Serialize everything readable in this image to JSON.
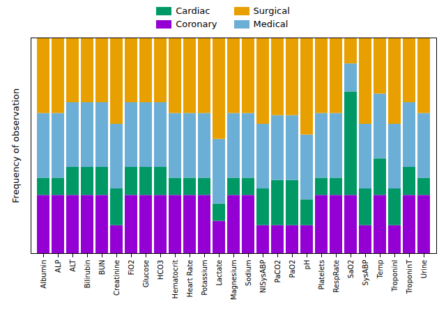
{
  "chart_data": {
    "type": "bar",
    "stacked": true,
    "categories": [
      "Albumin",
      "ALP",
      "ALT",
      "Bilirubin",
      "BUN",
      "Creatinine",
      "FiO2",
      "Glucose",
      "HCO3",
      "Hematocrit",
      "Heart Rate",
      "Potassium",
      "Lactate",
      "Magnesium",
      "Sodium",
      "NISysABP",
      "PaCO2",
      "PaO2",
      "pH",
      "Platelets",
      "RespRate",
      "SaO2",
      "SysABP",
      "Temp",
      "TroponinI",
      "TroponinT",
      "Urine"
    ],
    "series": [
      {
        "name": "Coronary",
        "color": "#9400D3",
        "values": [
          0.27,
          0.27,
          0.27,
          0.27,
          0.27,
          0.13,
          0.27,
          0.27,
          0.27,
          0.27,
          0.27,
          0.27,
          0.15,
          0.27,
          0.27,
          0.13,
          0.13,
          0.13,
          0.13,
          0.27,
          0.27,
          0.27,
          0.13,
          0.27,
          0.13,
          0.27,
          0.27
        ]
      },
      {
        "name": "Cardiac",
        "color": "#009966",
        "values": [
          0.08,
          0.08,
          0.13,
          0.13,
          0.13,
          0.17,
          0.13,
          0.13,
          0.13,
          0.08,
          0.08,
          0.08,
          0.08,
          0.08,
          0.08,
          0.17,
          0.21,
          0.21,
          0.12,
          0.08,
          0.08,
          0.48,
          0.17,
          0.17,
          0.17,
          0.13,
          0.08
        ]
      },
      {
        "name": "Medical",
        "color": "#6BAED6",
        "values": [
          0.3,
          0.3,
          0.3,
          0.3,
          0.3,
          0.3,
          0.3,
          0.3,
          0.3,
          0.3,
          0.3,
          0.3,
          0.3,
          0.3,
          0.3,
          0.3,
          0.3,
          0.3,
          0.3,
          0.3,
          0.3,
          0.13,
          0.3,
          0.3,
          0.3,
          0.3,
          0.3
        ]
      },
      {
        "name": "Surgical",
        "color": "#E8A000",
        "values": [
          0.35,
          0.35,
          0.3,
          0.3,
          0.3,
          0.4,
          0.3,
          0.3,
          0.3,
          0.35,
          0.35,
          0.35,
          0.47,
          0.35,
          0.35,
          0.4,
          0.36,
          0.36,
          0.45,
          0.35,
          0.35,
          0.12,
          0.4,
          0.26,
          0.4,
          0.3,
          0.35
        ]
      }
    ],
    "ylabel": "Frequency of observation",
    "ylim": [
      0,
      1.0
    ],
    "tick_labels": "x",
    "grid": false,
    "legend": "top"
  }
}
